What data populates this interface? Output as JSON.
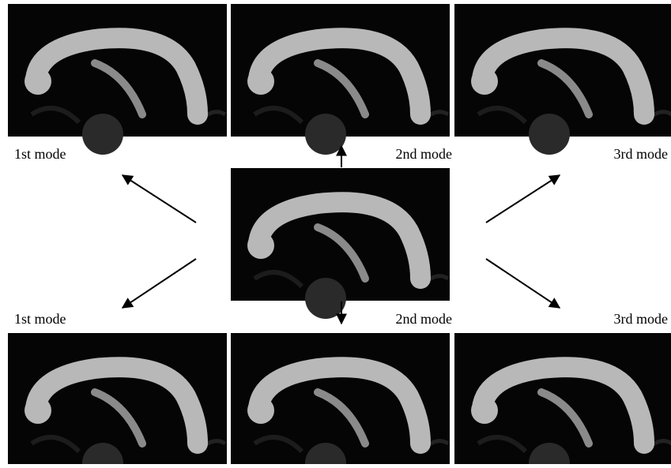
{
  "labels": {
    "top": [
      "1st mode",
      "2nd mode",
      "3rd mode"
    ],
    "bottom": [
      "1st mode",
      "2nd mode",
      "3rd mode"
    ]
  }
}
